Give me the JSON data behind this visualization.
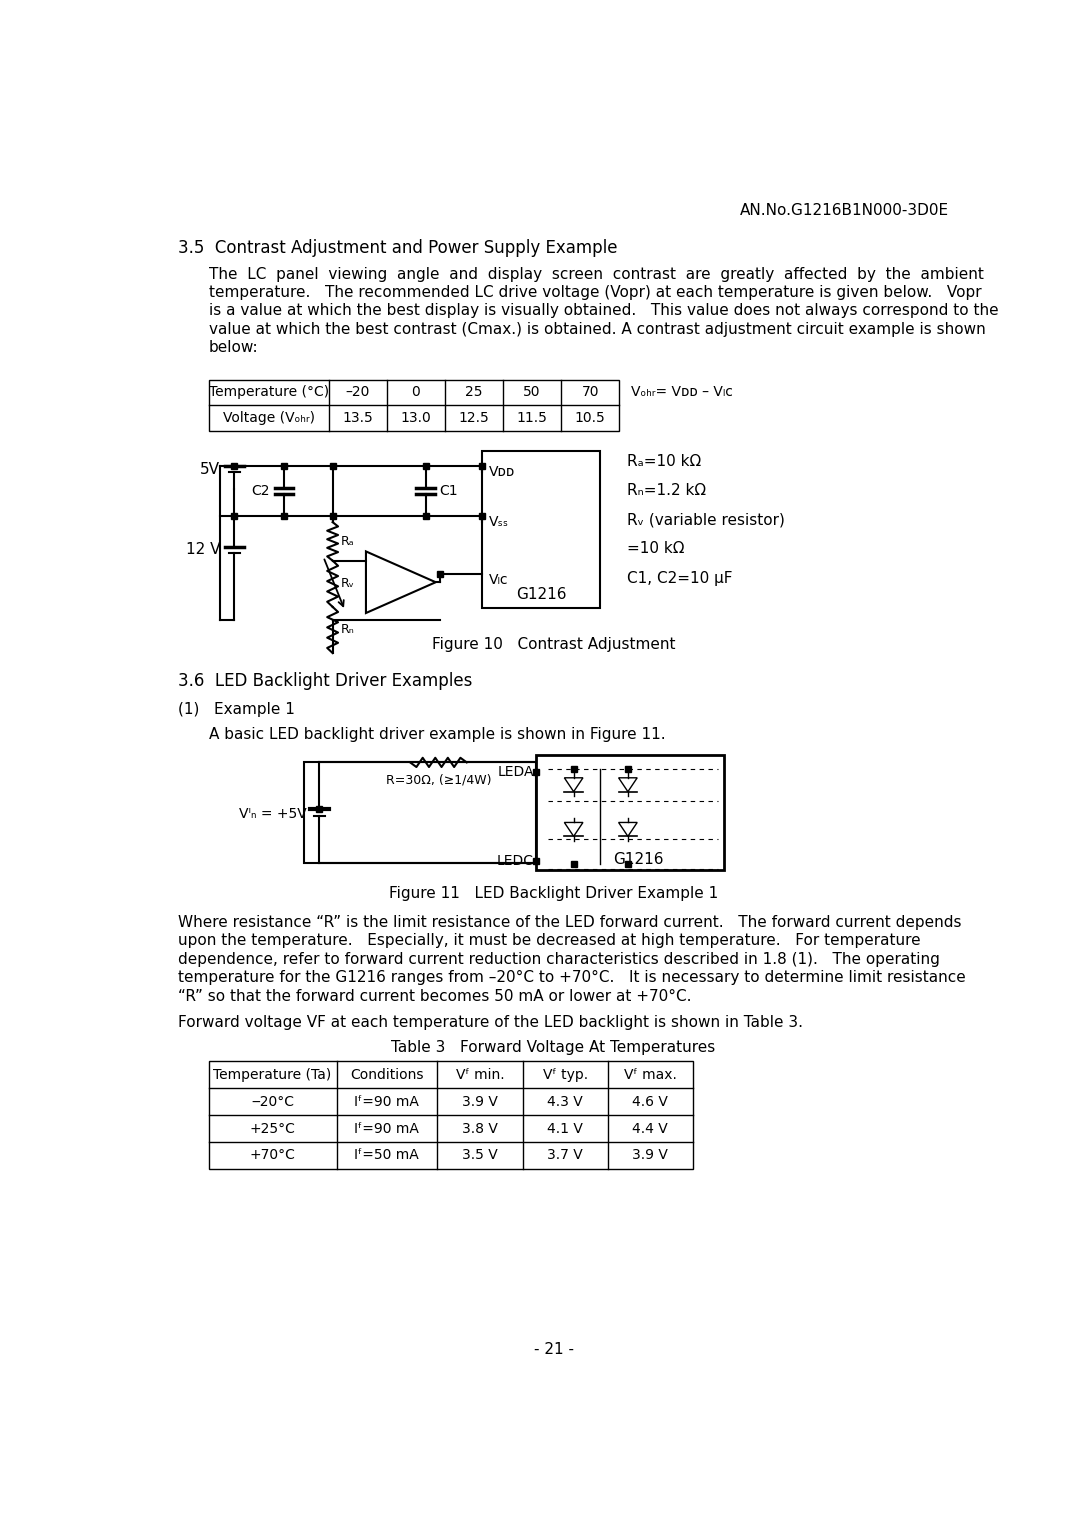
{
  "header": "AN.No.G1216B1N000-3D0E",
  "section_35_title": "3.5  Contrast Adjustment and Power Supply Example",
  "table1_headers": [
    "Temperature (°C)",
    "–20",
    "0",
    "25",
    "50",
    "70"
  ],
  "table1_row2": [
    "Voltage (Vₒₕᵣ)",
    "13.5",
    "13.0",
    "12.5",
    "11.5",
    "10.5"
  ],
  "figure10_caption": "Figure 10   Contrast Adjustment",
  "circuit1_notes": [
    "Rₐ=10 kΩ",
    "Rₙ=1.2 kΩ",
    "Rᵥ (variable resistor)",
    "=10 kΩ",
    "C1, C2=10 μF"
  ],
  "section_36_title": "3.6  LED Backlight Driver Examples",
  "example1_title": "(1)   Example 1",
  "example1_body": "A basic LED backlight driver example is shown in Figure 11.",
  "figure11_caption": "Figure 11   LED Backlight Driver Example 1",
  "section_body3": "Forward voltage VF at each temperature of the LED backlight is shown in Table 3.",
  "table3_title": "Table 3   Forward Voltage At Temperatures",
  "table3_headers": [
    "Temperature (Ta)",
    "Conditions",
    "Vᶠ min.",
    "Vᶠ typ.",
    "Vᶠ max."
  ],
  "table3_rows": [
    [
      "‒20°C",
      "Iᶠ=90 mA",
      "3.9 V",
      "4.3 V",
      "4.6 V"
    ],
    [
      "+25°C",
      "Iᶠ=90 mA",
      "3.8 V",
      "4.1 V",
      "4.4 V"
    ],
    [
      "+70°C",
      "Iᶠ=50 mA",
      "3.5 V",
      "3.7 V",
      "3.9 V"
    ]
  ],
  "page_number": "- 21 -",
  "bg_color": "#ffffff"
}
